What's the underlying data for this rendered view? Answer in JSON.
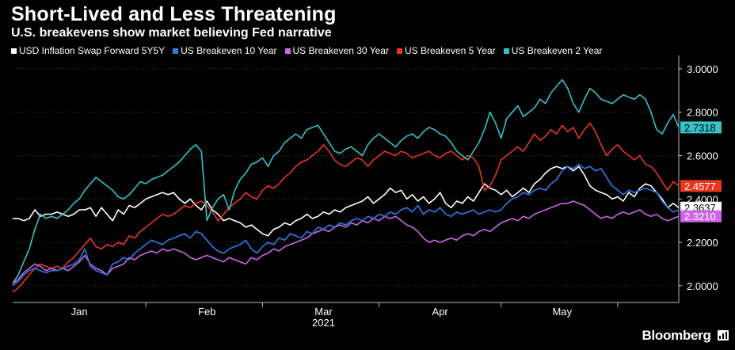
{
  "title": "Short-Lived and Less Threatening",
  "subtitle": "U.S. breakevens show market believing Fed narrative",
  "brand": "Bloomberg",
  "chart_data": {
    "type": "line",
    "title": "Short-Lived and Less Threatening",
    "subtitle": "U.S. breakevens show market believing Fed narrative",
    "xlabel": "2021",
    "ylabel": "",
    "months": [
      {
        "label": "Jan",
        "index": 12
      },
      {
        "label": "Feb",
        "index": 35
      },
      {
        "label": "Mar",
        "index": 56
      },
      {
        "label": "Apr",
        "index": 77
      },
      {
        "label": "May",
        "index": 99
      }
    ],
    "month_separators": [
      24,
      45,
      66,
      88,
      109
    ],
    "year_label": "2021",
    "ylim": [
      1.93,
      3.04
    ],
    "yticks": [
      2.0,
      2.2,
      2.4,
      2.6,
      2.8,
      3.0
    ],
    "ytick_labels": [
      "2.0000",
      "2.2000",
      "2.4000",
      "2.6000",
      "2.8000",
      "3.0000"
    ],
    "grid": "y-dotted",
    "legend_position": "top",
    "series": [
      {
        "name": "USD Inflation Swap Forward 5Y5Y",
        "color": "#ffffff",
        "last_label": "2.3637",
        "values": [
          2.31,
          2.31,
          2.3,
          2.31,
          2.35,
          2.32,
          2.33,
          2.33,
          2.34,
          2.33,
          2.32,
          2.33,
          2.35,
          2.35,
          2.36,
          2.32,
          2.36,
          2.33,
          2.3,
          2.35,
          2.33,
          2.37,
          2.36,
          2.38,
          2.4,
          2.41,
          2.42,
          2.43,
          2.42,
          2.43,
          2.4,
          2.38,
          2.4,
          2.37,
          2.35,
          2.39,
          2.35,
          2.33,
          2.3,
          2.31,
          2.3,
          2.29,
          2.27,
          2.28,
          2.26,
          2.24,
          2.23,
          2.26,
          2.27,
          2.29,
          2.28,
          2.3,
          2.31,
          2.33,
          2.31,
          2.32,
          2.34,
          2.33,
          2.35,
          2.34,
          2.36,
          2.37,
          2.38,
          2.39,
          2.41,
          2.38,
          2.4,
          2.42,
          2.45,
          2.43,
          2.44,
          2.4,
          2.42,
          2.39,
          2.41,
          2.38,
          2.4,
          2.43,
          2.38,
          2.36,
          2.39,
          2.38,
          2.41,
          2.39,
          2.43,
          2.47,
          2.45,
          2.44,
          2.42,
          2.44,
          2.41,
          2.43,
          2.45,
          2.43,
          2.47,
          2.49,
          2.52,
          2.54,
          2.55,
          2.54,
          2.55,
          2.53,
          2.55,
          2.51,
          2.46,
          2.44,
          2.43,
          2.42,
          2.4,
          2.41,
          2.39,
          2.43,
          2.41,
          2.45,
          2.47,
          2.46,
          2.43,
          2.4,
          2.36,
          2.38,
          2.36
        ]
      },
      {
        "name": "US Breakeven 10 Year",
        "color": "#2e7be6",
        "last_label": "",
        "values": [
          2.0,
          2.02,
          2.05,
          2.07,
          2.08,
          2.07,
          2.06,
          2.07,
          2.07,
          2.08,
          2.09,
          2.1,
          2.12,
          2.17,
          2.09,
          2.07,
          2.06,
          2.05,
          2.1,
          2.11,
          2.13,
          2.12,
          2.15,
          2.17,
          2.19,
          2.21,
          2.2,
          2.19,
          2.21,
          2.22,
          2.23,
          2.24,
          2.22,
          2.25,
          2.24,
          2.21,
          2.18,
          2.16,
          2.15,
          2.17,
          2.18,
          2.19,
          2.21,
          2.17,
          2.15,
          2.18,
          2.2,
          2.19,
          2.22,
          2.21,
          2.24,
          2.23,
          2.22,
          2.25,
          2.24,
          2.27,
          2.26,
          2.28,
          2.27,
          2.29,
          2.28,
          2.3,
          2.31,
          2.3,
          2.32,
          2.31,
          2.33,
          2.32,
          2.34,
          2.33,
          2.35,
          2.36,
          2.34,
          2.37,
          2.33,
          2.35,
          2.34,
          2.36,
          2.33,
          2.32,
          2.34,
          2.33,
          2.34,
          2.35,
          2.33,
          2.34,
          2.35,
          2.34,
          2.35,
          2.38,
          2.4,
          2.41,
          2.43,
          2.42,
          2.44,
          2.45,
          2.44,
          2.47,
          2.49,
          2.53,
          2.55,
          2.54,
          2.56,
          2.54,
          2.55,
          2.53,
          2.54,
          2.5,
          2.46,
          2.44,
          2.42,
          2.44,
          2.43,
          2.44,
          2.45,
          2.44,
          2.43,
          2.39,
          2.36,
          2.34,
          2.35
        ]
      },
      {
        "name": "US Breakeven 30 Year",
        "color": "#cc66e6",
        "last_label": "2.3210",
        "values": [
          2.01,
          2.03,
          2.06,
          2.08,
          2.1,
          2.09,
          2.07,
          2.08,
          2.07,
          2.08,
          2.07,
          2.09,
          2.11,
          2.14,
          2.1,
          2.08,
          2.07,
          2.05,
          2.08,
          2.09,
          2.1,
          2.13,
          2.12,
          2.14,
          2.15,
          2.16,
          2.15,
          2.17,
          2.16,
          2.17,
          2.16,
          2.15,
          2.13,
          2.12,
          2.13,
          2.14,
          2.13,
          2.12,
          2.11,
          2.13,
          2.12,
          2.11,
          2.1,
          2.13,
          2.12,
          2.14,
          2.15,
          2.17,
          2.16,
          2.18,
          2.19,
          2.2,
          2.21,
          2.22,
          2.24,
          2.25,
          2.26,
          2.25,
          2.27,
          2.28,
          2.27,
          2.29,
          2.28,
          2.3,
          2.29,
          2.31,
          2.3,
          2.32,
          2.31,
          2.32,
          2.3,
          2.28,
          2.27,
          2.25,
          2.22,
          2.2,
          2.21,
          2.2,
          2.21,
          2.22,
          2.21,
          2.23,
          2.24,
          2.23,
          2.25,
          2.26,
          2.25,
          2.27,
          2.29,
          2.3,
          2.31,
          2.3,
          2.32,
          2.31,
          2.33,
          2.34,
          2.35,
          2.36,
          2.37,
          2.38,
          2.38,
          2.39,
          2.38,
          2.37,
          2.35,
          2.33,
          2.31,
          2.32,
          2.31,
          2.33,
          2.34,
          2.33,
          2.34,
          2.35,
          2.33,
          2.32,
          2.33,
          2.31,
          2.3,
          2.31,
          2.32
        ]
      },
      {
        "name": "US Breakeven 5 Year",
        "color": "#e8361f",
        "last_label": "2.4577",
        "values": [
          1.97,
          1.99,
          2.02,
          2.05,
          2.08,
          2.1,
          2.09,
          2.08,
          2.09,
          2.08,
          2.11,
          2.13,
          2.16,
          2.19,
          2.22,
          2.18,
          2.17,
          2.19,
          2.18,
          2.2,
          2.19,
          2.23,
          2.22,
          2.25,
          2.27,
          2.29,
          2.31,
          2.33,
          2.32,
          2.33,
          2.35,
          2.37,
          2.36,
          2.38,
          2.39,
          2.37,
          2.34,
          2.3,
          2.33,
          2.36,
          2.38,
          2.4,
          2.43,
          2.41,
          2.4,
          2.44,
          2.46,
          2.45,
          2.47,
          2.5,
          2.52,
          2.55,
          2.57,
          2.58,
          2.6,
          2.62,
          2.65,
          2.62,
          2.58,
          2.56,
          2.55,
          2.57,
          2.59,
          2.58,
          2.55,
          2.58,
          2.6,
          2.62,
          2.61,
          2.6,
          2.62,
          2.61,
          2.59,
          2.6,
          2.61,
          2.62,
          2.6,
          2.59,
          2.61,
          2.62,
          2.6,
          2.58,
          2.6,
          2.59,
          2.55,
          2.44,
          2.46,
          2.51,
          2.58,
          2.6,
          2.62,
          2.64,
          2.62,
          2.66,
          2.7,
          2.67,
          2.69,
          2.72,
          2.7,
          2.74,
          2.71,
          2.73,
          2.68,
          2.72,
          2.75,
          2.71,
          2.65,
          2.6,
          2.63,
          2.65,
          2.62,
          2.6,
          2.58,
          2.6,
          2.56,
          2.55,
          2.52,
          2.48,
          2.44,
          2.48,
          2.46
        ]
      },
      {
        "name": "US Breakeven 2 Year",
        "color": "#35c2c9",
        "last_label": "2.7318",
        "values": [
          2.01,
          2.05,
          2.11,
          2.17,
          2.26,
          2.33,
          2.31,
          2.32,
          2.31,
          2.33,
          2.35,
          2.38,
          2.4,
          2.44,
          2.47,
          2.5,
          2.48,
          2.46,
          2.44,
          2.41,
          2.4,
          2.42,
          2.45,
          2.48,
          2.47,
          2.49,
          2.5,
          2.51,
          2.53,
          2.55,
          2.57,
          2.6,
          2.63,
          2.65,
          2.62,
          2.3,
          2.36,
          2.4,
          2.42,
          2.35,
          2.44,
          2.49,
          2.52,
          2.56,
          2.57,
          2.59,
          2.55,
          2.6,
          2.62,
          2.66,
          2.68,
          2.7,
          2.68,
          2.72,
          2.73,
          2.74,
          2.7,
          2.66,
          2.62,
          2.61,
          2.63,
          2.64,
          2.62,
          2.6,
          2.65,
          2.68,
          2.7,
          2.68,
          2.66,
          2.64,
          2.67,
          2.69,
          2.7,
          2.68,
          2.71,
          2.73,
          2.72,
          2.7,
          2.69,
          2.66,
          2.62,
          2.6,
          2.58,
          2.62,
          2.66,
          2.72,
          2.8,
          2.75,
          2.68,
          2.77,
          2.8,
          2.83,
          2.78,
          2.8,
          2.82,
          2.86,
          2.84,
          2.89,
          2.92,
          2.95,
          2.91,
          2.84,
          2.8,
          2.86,
          2.91,
          2.89,
          2.86,
          2.85,
          2.84,
          2.86,
          2.88,
          2.87,
          2.86,
          2.88,
          2.86,
          2.8,
          2.72,
          2.7,
          2.75,
          2.79,
          2.73
        ]
      }
    ]
  }
}
